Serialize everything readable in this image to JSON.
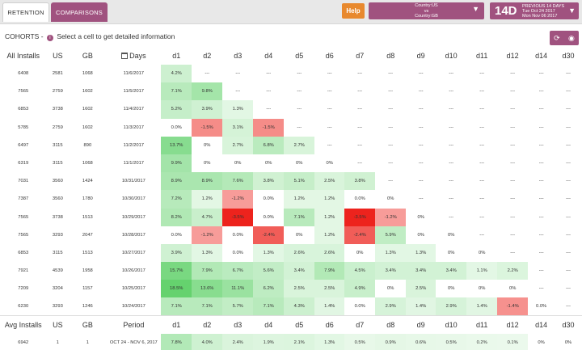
{
  "tabs": [
    {
      "label": "RETENTION",
      "active": true
    },
    {
      "label": "COMPARISONS",
      "active": false
    }
  ],
  "help_label": "Help",
  "country_select": {
    "line1": "Country:US",
    "line2": "vs",
    "line3": "Country:GB"
  },
  "period_select": {
    "big": "14D",
    "line1": "PREVIOUS 14 DAYS",
    "line2": "Tue Oct 24 2017",
    "line3": "Mon Nov 06 2017"
  },
  "cohorts": {
    "title": "COHORTS",
    "dash": "-",
    "info_glyph": "i",
    "hint": "Select a cell to get detailed information"
  },
  "colors": {
    "accent": "#a0527f",
    "help": "#e8892e",
    "positive": "#4caf50",
    "negative": "#e53935"
  },
  "table": {
    "headers": [
      "All Installs",
      "US",
      "GB",
      "Days",
      "d1",
      "d2",
      "d3",
      "d4",
      "d5",
      "d6",
      "d7",
      "d8",
      "d9",
      "d10",
      "d11",
      "d12",
      "d14",
      "d30"
    ],
    "rows": [
      {
        "all": "6408",
        "us": "2581",
        "gb": "1068",
        "date": "11/6/2017",
        "cells": [
          "4.2%",
          "---",
          "---",
          "---",
          "---",
          "---",
          "---",
          "---",
          "---",
          "---",
          "---",
          "---",
          "---",
          "---"
        ]
      },
      {
        "all": "7565",
        "us": "2759",
        "gb": "1602",
        "date": "11/5/2017",
        "cells": [
          "7.1%",
          "9.8%",
          "---",
          "---",
          "---",
          "---",
          "---",
          "---",
          "---",
          "---",
          "---",
          "---",
          "---",
          "---"
        ]
      },
      {
        "all": "6853",
        "us": "3738",
        "gb": "1602",
        "date": "11/4/2017",
        "cells": [
          "5.2%",
          "3.9%",
          "1.3%",
          "---",
          "---",
          "---",
          "---",
          "---",
          "---",
          "---",
          "---",
          "---",
          "---",
          "---"
        ]
      },
      {
        "all": "5785",
        "us": "2759",
        "gb": "1602",
        "date": "11/3/2017",
        "cells": [
          "0.0%",
          "-1.5%",
          "3.1%",
          "-1.5%",
          "---",
          "---",
          "---",
          "---",
          "---",
          "---",
          "---",
          "---",
          "---",
          "---"
        ]
      },
      {
        "all": "6497",
        "us": "3115",
        "gb": "890",
        "date": "11/2/2017",
        "cells": [
          "13.7%",
          "0%",
          "2.7%",
          "6.8%",
          "2.7%",
          "---",
          "---",
          "---",
          "---",
          "---",
          "---",
          "---",
          "---",
          "---"
        ]
      },
      {
        "all": "6319",
        "us": "3115",
        "gb": "1068",
        "date": "11/1/2017",
        "cells": [
          "9.9%",
          "0%",
          "0%",
          "0%",
          "0%",
          "0%",
          "---",
          "---",
          "---",
          "---",
          "---",
          "---",
          "---",
          "---"
        ]
      },
      {
        "all": "7031",
        "us": "3560",
        "gb": "1424",
        "date": "10/31/2017",
        "cells": [
          "8.9%",
          "8.9%",
          "7.6%",
          "3.8%",
          "5.1%",
          "2.5%",
          "3.8%",
          "---",
          "---",
          "---",
          "---",
          "---",
          "---",
          "---"
        ]
      },
      {
        "all": "7387",
        "us": "3560",
        "gb": "1780",
        "date": "10/30/2017",
        "cells": [
          "7.2%",
          "1.2%",
          "-1.2%",
          "0.0%",
          "1.2%",
          "1.2%",
          "0.0%",
          "0%",
          "---",
          "---",
          "---",
          "---",
          "---",
          "---"
        ]
      },
      {
        "all": "7565",
        "us": "3738",
        "gb": "1513",
        "date": "10/29/2017",
        "cells": [
          "8.2%",
          "4.7%",
          "-3.5%",
          "0.0%",
          "7.1%",
          "1.2%",
          "-3.5%",
          "-1.2%",
          "0%",
          "---",
          "---",
          "---",
          "---",
          "---"
        ]
      },
      {
        "all": "7565",
        "us": "3293",
        "gb": "2047",
        "date": "10/28/2017",
        "cells": [
          "0.0%",
          "-1.2%",
          "0.0%",
          "-2.4%",
          "0%",
          "1.2%",
          "-2.4%",
          "5.9%",
          "0%",
          "0%",
          "---",
          "---",
          "---",
          "---"
        ]
      },
      {
        "all": "6853",
        "us": "3115",
        "gb": "1513",
        "date": "10/27/2017",
        "cells": [
          "3.9%",
          "1.3%",
          "0.0%",
          "1.3%",
          "2.6%",
          "2.6%",
          "0%",
          "1.3%",
          "1.3%",
          "0%",
          "0%",
          "---",
          "---",
          "---"
        ]
      },
      {
        "all": "7921",
        "us": "4539",
        "gb": "1958",
        "date": "10/26/2017",
        "cells": [
          "15.7%",
          "7.9%",
          "6.7%",
          "5.6%",
          "3.4%",
          "7.9%",
          "4.5%",
          "3.4%",
          "3.4%",
          "3.4%",
          "1.1%",
          "2.2%",
          "---",
          "---"
        ]
      },
      {
        "all": "7209",
        "us": "3204",
        "gb": "1157",
        "date": "10/25/2017",
        "cells": [
          "18.5%",
          "13.6%",
          "11.1%",
          "6.2%",
          "2.5%",
          "2.5%",
          "4.9%",
          "0%",
          "2.5%",
          "0%",
          "0%",
          "0%",
          "---",
          "---"
        ]
      },
      {
        "all": "6230",
        "us": "3293",
        "gb": "1246",
        "date": "10/24/2017",
        "cells": [
          "7.1%",
          "7.1%",
          "5.7%",
          "7.1%",
          "4.3%",
          "1.4%",
          "0.0%",
          "2.9%",
          "1.4%",
          "2.9%",
          "1.4%",
          "-1.4%",
          "0.0%",
          "---"
        ]
      }
    ],
    "avg_headers": [
      "Avg Installs",
      "US",
      "GB",
      "Period",
      "d1",
      "d2",
      "d3",
      "d4",
      "d5",
      "d6",
      "d7",
      "d8",
      "d9",
      "d10",
      "d11",
      "d12",
      "d14",
      "d30"
    ],
    "avg_row": {
      "all": "6942",
      "us": "1",
      "gb": "1",
      "period": "OCT 24 - NOV 6, 2017",
      "cells": [
        "7.8%",
        "4.0%",
        "2.4%",
        "1.9%",
        "2.1%",
        "1.3%",
        "0.5%",
        "0.9%",
        "0.6%",
        "0.5%",
        "0.2%",
        "0.1%",
        "0%",
        "0%"
      ]
    }
  }
}
